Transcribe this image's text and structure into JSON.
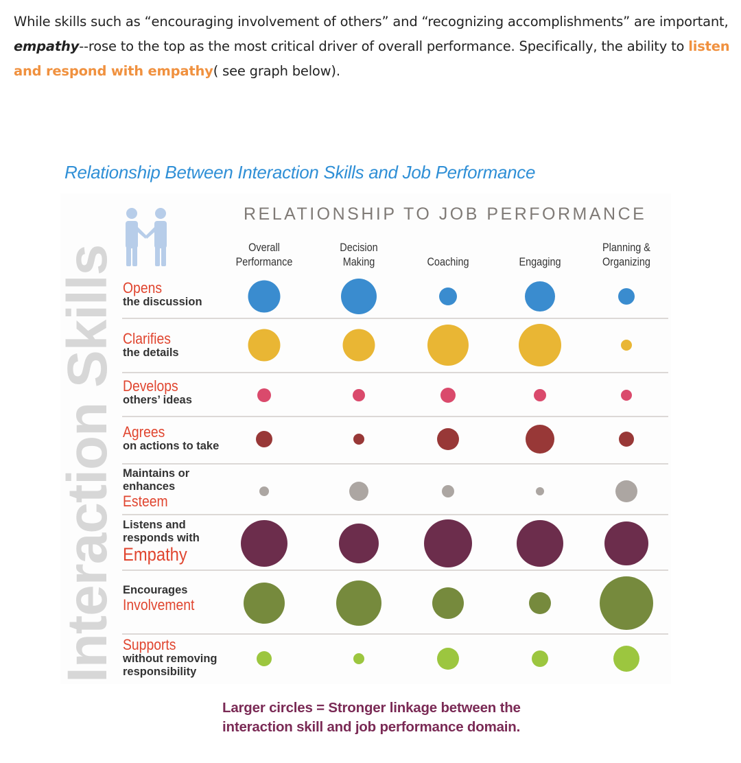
{
  "intro": {
    "part1": "While skills such as “encouraging involvement of others” and “recognizing accomplishments” are important, ",
    "emphasis": "empathy",
    "part2": "--rose to the top as the most critical driver of overall performance. Specifically, the ability to ",
    "highlight": "listen and respond with empathy",
    "part3": "( see graph below).",
    "highlight_color": "#f0913f"
  },
  "chart_data": {
    "type": "bubble-matrix",
    "title": "Relationship Between Interaction Skills and Job Performance",
    "supertitle": "RELATIONSHIP TO JOB PERFORMANCE",
    "ylabel": "Interaction Skills",
    "categories": [
      "Overall Performance",
      "Decision Making",
      "Coaching",
      "Engaging",
      "Planning & Organizing"
    ],
    "series": [
      {
        "name": "Opens the discussion",
        "color": "#3a8ccf",
        "values": [
          47,
          52,
          26,
          44,
          24
        ]
      },
      {
        "name": "Clarifies the details",
        "color": "#e9b634",
        "values": [
          47,
          47,
          60,
          62,
          16
        ]
      },
      {
        "name": "Develops others' ideas",
        "color": "#da4a6c",
        "values": [
          20,
          18,
          22,
          18,
          16
        ]
      },
      {
        "name": "Agrees on actions to take",
        "color": "#983837",
        "values": [
          24,
          16,
          32,
          42,
          22
        ]
      },
      {
        "name": "Maintains or enhances Esteem",
        "color": "#aca6a2",
        "values": [
          14,
          28,
          18,
          12,
          32
        ]
      },
      {
        "name": "Listens and responds with Empathy",
        "color": "#6c2d4c",
        "values": [
          68,
          58,
          70,
          68,
          64
        ]
      },
      {
        "name": "Encourages Involvement",
        "color": "#768a3d",
        "values": [
          60,
          66,
          46,
          32,
          78
        ]
      },
      {
        "name": "Supports without removing responsibility",
        "color": "#9cc63f",
        "values": [
          22,
          16,
          32,
          24,
          38
        ]
      }
    ],
    "value_meaning": "relative circle diameter (larger = stronger linkage)",
    "caption": "Larger circles = Stronger linkage between the interaction skill and job performance domain."
  },
  "columns": [
    {
      "line1": "Overall",
      "line2": "Performance"
    },
    {
      "line1": "Decision",
      "line2": "Making"
    },
    {
      "line1": "Coaching",
      "line2": ""
    },
    {
      "line1": "Engaging",
      "line2": ""
    },
    {
      "line1": "Planning &",
      "line2": "Organizing"
    }
  ],
  "rows": [
    {
      "a": "Opens",
      "b": "the discussion"
    },
    {
      "a": "Clarifies",
      "b": "the details"
    },
    {
      "a": "Develops",
      "b": "others’ ideas"
    },
    {
      "a": "Agrees",
      "b": "on actions to take"
    },
    {
      "pre1": "Maintains or",
      "pre2": "enhances",
      "a": "Esteem"
    },
    {
      "pre1": "Listens and",
      "pre2": "responds with",
      "a": "Empathy"
    },
    {
      "pre1": "Encourages",
      "a": "Involvement"
    },
    {
      "a": "Supports",
      "b": "without removing",
      "c": "responsibility"
    }
  ],
  "caption": {
    "line1": "Larger circles = Stronger linkage between the",
    "line2": "interaction skill and job performance domain."
  }
}
